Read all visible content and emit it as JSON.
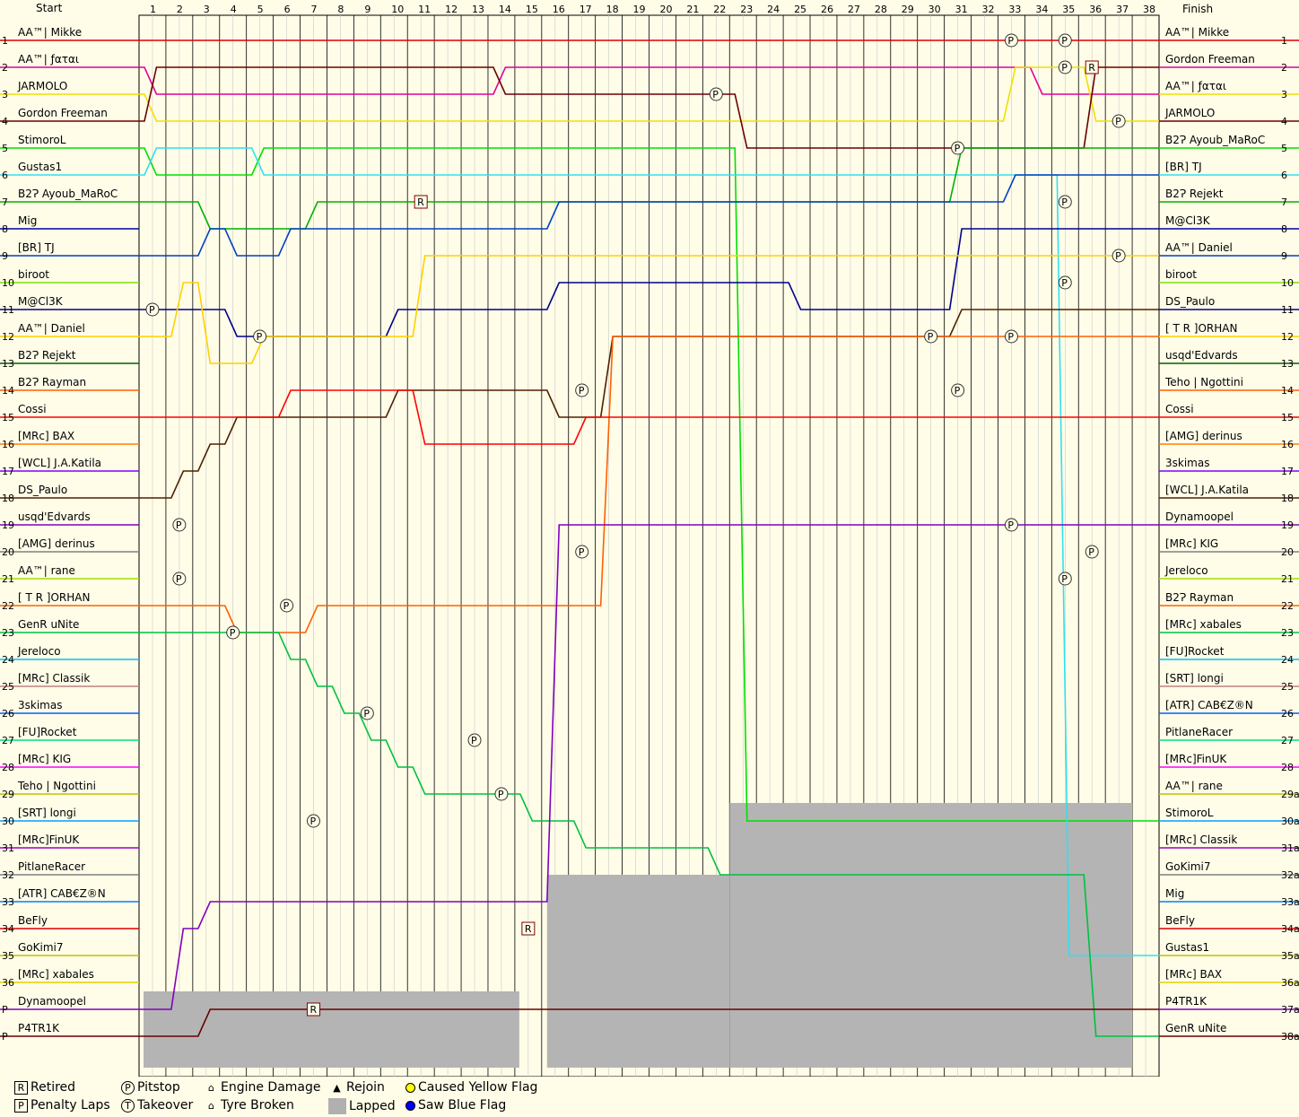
{
  "chart_data": {
    "type": "line",
    "title": "",
    "start_label": "Start",
    "finish_label": "Finish",
    "laps": [
      1,
      2,
      3,
      4,
      5,
      6,
      7,
      8,
      9,
      10,
      11,
      12,
      13,
      14,
      15,
      16,
      17,
      18,
      19,
      20,
      21,
      22,
      23,
      24,
      25,
      26,
      27,
      28,
      29,
      30,
      31,
      32,
      33,
      34,
      35,
      36,
      37,
      38
    ],
    "start_positions": [
      "1",
      "2",
      "3",
      "4",
      "5",
      "6",
      "7",
      "8",
      "9",
      "10",
      "11",
      "12",
      "13",
      "14",
      "15",
      "16",
      "17",
      "18",
      "19",
      "20",
      "21",
      "22",
      "23",
      "24",
      "25",
      "26",
      "27",
      "28",
      "29",
      "30",
      "31",
      "32",
      "33",
      "34",
      "35",
      "36",
      "P",
      "P"
    ],
    "start_names": [
      "AA™| Mikke",
      "AA™| ƒαται",
      "JARMOLO",
      "Gordon Freeman",
      "StimoroL",
      "Gustas1",
      "B2Ɂ Ayoub_MaRoC",
      "Mig",
      "[BR] TJ",
      "biroot",
      "M@Cl3K",
      "AA™| Daniel",
      "B2Ɂ Rejekt",
      "B2Ɂ Rayman",
      "Cossi",
      "[MRc] BAX",
      "[WCL] J.A.Katila",
      "DS_Paulo",
      "usqd'Edvards",
      "[AMG] derinus",
      "AA™| rane",
      "[ T R ]ORHAN",
      "GenR uNite",
      "Jereloco",
      "[MRc] Classik",
      "3skimas",
      "[FU]Rocket",
      "[MRc] KIG",
      "Teho | Ngottini",
      "[SRT] longi",
      "[MRc]FinUK",
      "PitlaneRacer",
      "[ATR] CAB€Z®N",
      "BeFly",
      "GoKimi7",
      "[MRc] xabales",
      "Dynamoopel",
      "P4TR1K"
    ],
    "finish_names": [
      "AA™| Mikke",
      "Gordon Freeman",
      "AA™| ƒαται",
      "JARMOLO",
      "B2Ɂ Ayoub_MaRoC",
      "[BR] TJ",
      "B2Ɂ Rejekt",
      "M@Cl3K",
      "AA™| Daniel",
      "biroot",
      "DS_Paulo",
      "[ T R ]ORHAN",
      "usqd'Edvards",
      "Teho | Ngottini",
      "Cossi",
      "[AMG] derinus",
      "3skimas",
      "[WCL] J.A.Katila",
      "Dynamoopel",
      "[MRc] KIG",
      "Jereloco",
      "B2Ɂ Rayman",
      "[MRc] xabales",
      "[FU]Rocket",
      "[SRT] longi",
      "[ATR] CAB€Z®N",
      "PitlaneRacer",
      "[MRc]FinUK",
      "AA™| rane",
      "StimoroL",
      "[MRc] Classik",
      "GoKimi7",
      "Mig",
      "BeFly",
      "Gustas1",
      "[MRc] BAX",
      "P4TR1K",
      "GenR uNite"
    ],
    "finish_positions": [
      "1",
      "2",
      "3",
      "4",
      "5",
      "6",
      "7",
      "8",
      "9",
      "10",
      "11",
      "12",
      "13",
      "14",
      "15",
      "16",
      "17",
      "18",
      "19",
      "20",
      "21",
      "22",
      "23",
      "24",
      "25",
      "26",
      "27",
      "28",
      "29a",
      "30a",
      "31a",
      "32a",
      "33a",
      "34a",
      "35a",
      "36a",
      "37a",
      "38a"
    ],
    "colors": [
      "#e00000",
      "#e0009a",
      "#f0e000",
      "#6a0000",
      "#00e000",
      "#30e0f0",
      "#00b000",
      "#0000a0",
      "#0040c0",
      "#80e000",
      "#00008a",
      "#ffd000",
      "#006000",
      "#ff6000",
      "#ff0000",
      "#ff8000",
      "#8000ff",
      "#502000",
      "#8000c0",
      "#808080",
      "#a0e000",
      "#ff6000",
      "#00c040",
      "#00c0ff",
      "#c08080",
      "#0060ff",
      "#00e080",
      "#ff00ff",
      "#c0c000",
      "#00a0ff",
      "#a000c0",
      "#808080",
      "#0080ff",
      "#e00000",
      "#c0c000",
      "#e0d000",
      "#8000c0",
      "#6a0000"
    ],
    "series": [
      {
        "name": "AA™| Mikke",
        "finish": 1,
        "positions": [
          1,
          1,
          1,
          1,
          1,
          1,
          1,
          1,
          1,
          1,
          1,
          1,
          1,
          1,
          1,
          1,
          1,
          1,
          1,
          1,
          1,
          1,
          1,
          1,
          1,
          1,
          1,
          1,
          1,
          1,
          1,
          1,
          1,
          1,
          1,
          1,
          1,
          1
        ]
      },
      {
        "name": "AA™| ƒαται",
        "finish": 3,
        "positions": [
          3,
          3,
          3,
          3,
          3,
          3,
          3,
          3,
          3,
          3,
          3,
          3,
          3,
          2,
          2,
          2,
          2,
          2,
          2,
          2,
          2,
          2,
          2,
          2,
          2,
          2,
          2,
          2,
          2,
          2,
          2,
          2,
          2,
          3,
          3,
          3,
          3,
          3
        ]
      },
      {
        "name": "JARMOLO",
        "finish": 4,
        "positions": [
          4,
          4,
          4,
          4,
          4,
          4,
          4,
          4,
          4,
          4,
          4,
          4,
          4,
          4,
          4,
          4,
          4,
          4,
          4,
          4,
          4,
          4,
          4,
          4,
          4,
          4,
          4,
          4,
          4,
          4,
          4,
          4,
          2,
          2,
          2,
          4,
          4,
          4
        ]
      },
      {
        "name": "Gordon Freeman",
        "finish": 2,
        "positions": [
          2,
          2,
          2,
          2,
          2,
          2,
          2,
          2,
          2,
          2,
          2,
          2,
          2,
          3,
          3,
          3,
          3,
          3,
          3,
          3,
          3,
          3,
          5,
          5,
          5,
          5,
          5,
          5,
          5,
          5,
          5,
          5,
          5,
          5,
          5,
          2,
          2,
          2
        ]
      },
      {
        "name": "StimoroL",
        "finish": 30,
        "positions": [
          6,
          6,
          6,
          6,
          5,
          5,
          5,
          5,
          5,
          5,
          5,
          5,
          5,
          5,
          5,
          5,
          5,
          5,
          5,
          5,
          5,
          5,
          30,
          30,
          30,
          30,
          30,
          30,
          30,
          30,
          30,
          30,
          30,
          30,
          30,
          30,
          30,
          30
        ]
      },
      {
        "name": "Gustas1",
        "finish": 35,
        "positions": [
          5,
          5,
          5,
          5,
          6,
          6,
          6,
          6,
          6,
          6,
          6,
          6,
          6,
          6,
          6,
          6,
          6,
          6,
          6,
          6,
          6,
          6,
          6,
          6,
          6,
          6,
          6,
          6,
          6,
          6,
          6,
          6,
          6,
          6,
          35,
          35,
          35,
          35
        ]
      },
      {
        "name": "B2Ɂ Ayoub_MaRoC",
        "finish": 5,
        "positions": [
          7,
          7,
          8,
          8,
          8,
          8,
          7,
          7,
          7,
          7,
          7,
          7,
          7,
          7,
          7,
          7,
          7,
          7,
          7,
          7,
          7,
          7,
          7,
          7,
          7,
          7,
          7,
          7,
          7,
          7,
          5,
          5,
          5,
          5,
          5,
          5,
          5,
          5
        ]
      },
      {
        "name": "[BR] TJ",
        "finish": 6,
        "positions": [
          9,
          9,
          8,
          9,
          9,
          8,
          8,
          8,
          8,
          8,
          8,
          8,
          8,
          8,
          8,
          7,
          7,
          7,
          7,
          7,
          7,
          7,
          7,
          7,
          7,
          7,
          7,
          7,
          7,
          7,
          7,
          7,
          6,
          6,
          6,
          6,
          6,
          6
        ]
      },
      {
        "name": "M@Cl3K",
        "finish": 8,
        "positions": [
          11,
          11,
          11,
          12,
          12,
          12,
          12,
          12,
          12,
          11,
          11,
          11,
          11,
          11,
          11,
          10,
          10,
          10,
          10,
          10,
          10,
          10,
          10,
          10,
          11,
          11,
          11,
          11,
          11,
          11,
          8,
          8,
          8,
          8,
          8,
          8,
          8,
          8
        ]
      },
      {
        "name": "AA™| Daniel",
        "finish": 9,
        "positions": [
          12,
          10,
          13,
          13,
          12,
          12,
          12,
          12,
          12,
          12,
          9,
          9,
          9,
          9,
          9,
          9,
          9,
          9,
          9,
          9,
          9,
          9,
          9,
          9,
          9,
          9,
          9,
          9,
          9,
          9,
          9,
          9,
          9,
          9,
          9,
          9,
          9,
          9
        ]
      },
      {
        "name": "DS_Paulo",
        "finish": 11,
        "positions": [
          18,
          17,
          16,
          15,
          15,
          15,
          15,
          15,
          15,
          14,
          14,
          14,
          14,
          14,
          14,
          15,
          15,
          12,
          12,
          12,
          12,
          12,
          12,
          12,
          12,
          12,
          12,
          12,
          12,
          12,
          11,
          11,
          11,
          11,
          11,
          11,
          11,
          11
        ]
      },
      {
        "name": "[ T R ]ORHAN",
        "finish": 12,
        "positions": [
          22,
          22,
          22,
          23,
          23,
          23,
          22,
          22,
          22,
          22,
          22,
          22,
          22,
          22,
          22,
          22,
          22,
          12,
          12,
          12,
          12,
          12,
          12,
          12,
          12,
          12,
          12,
          12,
          12,
          12,
          12,
          12,
          12,
          12,
          12,
          12,
          12,
          12
        ]
      },
      {
        "name": "Cossi",
        "finish": 15,
        "positions": [
          15,
          15,
          15,
          15,
          15,
          14,
          14,
          14,
          14,
          14,
          16,
          16,
          16,
          16,
          16,
          16,
          15,
          15,
          15,
          15,
          15,
          15,
          15,
          15,
          15,
          15,
          15,
          15,
          15,
          15,
          15,
          15,
          15,
          15,
          15,
          15,
          15,
          15
        ]
      },
      {
        "name": "GenR uNite",
        "finish": 38,
        "positions": [
          23,
          23,
          23,
          23,
          23,
          24,
          25,
          26,
          27,
          28,
          29,
          29,
          29,
          29,
          30,
          30,
          31,
          31,
          31,
          31,
          31,
          32,
          32,
          32,
          32,
          32,
          32,
          32,
          32,
          32,
          32,
          32,
          32,
          32,
          32,
          38,
          38,
          38
        ]
      },
      {
        "name": "Dynamoopel",
        "finish": 19,
        "positions": [
          37,
          34,
          33,
          33,
          33,
          33,
          33,
          33,
          33,
          33,
          33,
          33,
          33,
          33,
          33,
          19,
          19,
          19,
          19,
          19,
          19,
          19,
          19,
          19,
          19,
          19,
          19,
          19,
          19,
          19,
          19,
          19,
          19,
          19,
          19,
          19,
          19,
          19
        ]
      },
      {
        "name": "P4TR1K",
        "finish": 37,
        "positions": [
          38,
          38,
          37,
          37,
          37,
          37,
          37,
          37,
          37,
          37,
          37,
          37,
          37,
          37,
          37,
          37,
          37,
          37,
          37,
          37,
          37,
          37,
          37,
          37,
          37,
          37,
          37,
          37,
          37,
          37,
          37,
          37,
          37,
          37,
          37,
          37,
          37,
          37
        ]
      }
    ],
    "retired_markers": [
      {
        "name": "B2Ɂ Rayman",
        "lap": 11,
        "position": 7
      },
      {
        "name": "BeFly",
        "lap": 15,
        "position": 34
      },
      {
        "name": "Dynamoopel",
        "lap": 7,
        "position": 37
      },
      {
        "name": "Gordon Freeman",
        "lap": 36,
        "position": 2
      }
    ],
    "pit_markers": [
      {
        "lap": 33,
        "position": 1
      },
      {
        "lap": 35,
        "position": 1
      },
      {
        "lap": 35,
        "position": 2
      },
      {
        "lap": 22,
        "position": 3
      },
      {
        "lap": 37,
        "position": 4
      },
      {
        "lap": 31,
        "position": 5
      },
      {
        "lap": 35,
        "position": 7
      },
      {
        "lap": 37,
        "position": 9
      },
      {
        "lap": 35,
        "position": 10
      },
      {
        "lap": 1,
        "position": 11
      },
      {
        "lap": 5,
        "position": 12
      },
      {
        "lap": 30,
        "position": 12
      },
      {
        "lap": 33,
        "position": 12
      },
      {
        "lap": 17,
        "position": 14
      },
      {
        "lap": 31,
        "position": 14
      },
      {
        "lap": 2,
        "position": 19
      },
      {
        "lap": 33,
        "position": 19
      },
      {
        "lap": 17,
        "position": 20
      },
      {
        "lap": 36,
        "position": 20
      },
      {
        "lap": 2,
        "position": 21
      },
      {
        "lap": 35,
        "position": 21
      },
      {
        "lap": 6,
        "position": 22
      },
      {
        "lap": 4,
        "position": 23
      },
      {
        "lap": 9,
        "position": 26
      },
      {
        "lap": 13,
        "position": 27
      },
      {
        "lap": 14,
        "position": 29
      },
      {
        "lap": 7,
        "position": 30
      }
    ],
    "lapped_start_lap": 16,
    "legend": {
      "retired": "Retired",
      "penalty": "Penalty Laps",
      "pitstop": "Pitstop",
      "takeover": "Takeover",
      "engine": "Engine Damage",
      "tyre": "Tyre Broken",
      "rejoin": "Rejoin",
      "lapped": "Lapped",
      "yellow": "Caused Yellow Flag",
      "blue": "Saw Blue Flag"
    },
    "grid": true
  }
}
